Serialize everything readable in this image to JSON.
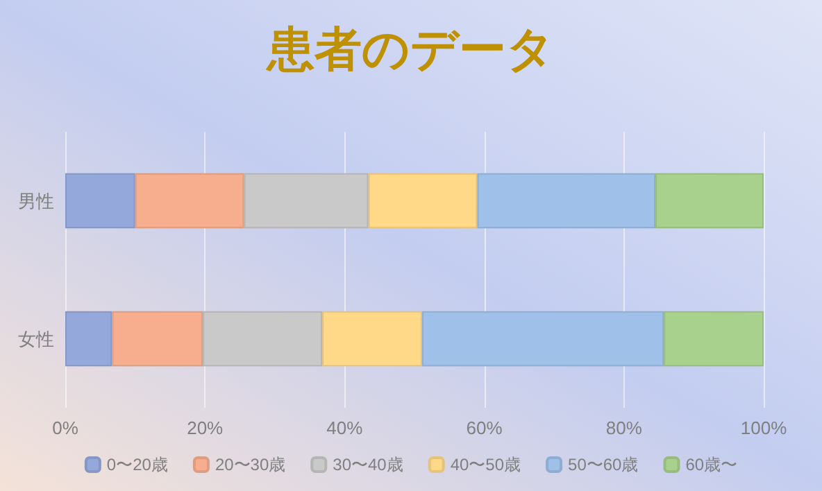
{
  "chart_data": {
    "type": "bar",
    "title": "患者のデータ",
    "orientation": "horizontal",
    "stacked": true,
    "categories": [
      "男性",
      "女性"
    ],
    "series": [
      {
        "name": "0〜20歳",
        "color": "#95a8dc",
        "values": [
          10.0,
          6.7
        ]
      },
      {
        "name": "20〜30歳",
        "color": "#f6ae8e",
        "values": [
          15.6,
          13.0
        ]
      },
      {
        "name": "30〜40歳",
        "color": "#c9c9c9",
        "values": [
          17.8,
          17.1
        ]
      },
      {
        "name": "40〜50歳",
        "color": "#ffd888",
        "values": [
          15.6,
          14.3
        ]
      },
      {
        "name": "50〜60歳",
        "color": "#9fc0e8",
        "values": [
          25.5,
          34.6
        ]
      },
      {
        "name": "60歳〜",
        "color": "#a9d18e",
        "values": [
          15.5,
          14.3
        ]
      }
    ],
    "xlim": [
      0,
      100
    ],
    "xticks": [
      {
        "value": 0,
        "label": "0%"
      },
      {
        "value": 20,
        "label": "20%"
      },
      {
        "value": 40,
        "label": "40%"
      },
      {
        "value": 60,
        "label": "60%"
      },
      {
        "value": 80,
        "label": "80%"
      },
      {
        "value": 100,
        "label": "100%"
      }
    ],
    "grid": "x",
    "legend": "bottom"
  }
}
